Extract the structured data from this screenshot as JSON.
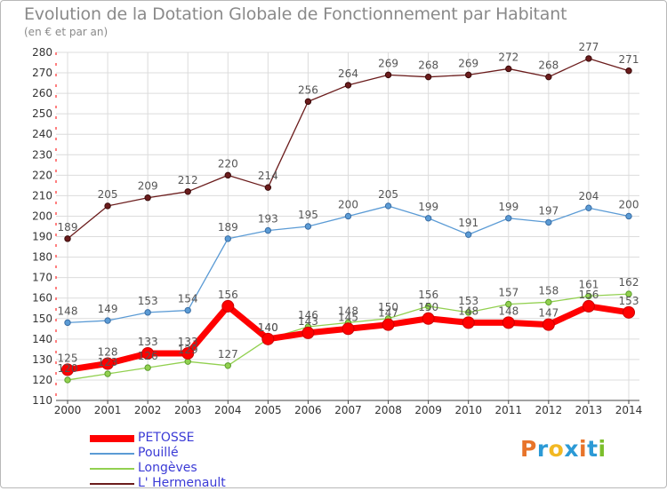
{
  "header": {
    "title": "Evolution de la Dotation Globale de Fonctionnement par Habitant",
    "subtitle": "(en € et par an)"
  },
  "logo": {
    "text": "Proxiti",
    "colors": [
      "#e8742a",
      "#2c9ad6",
      "#f2b822",
      "#2c9ad6",
      "#e8742a",
      "#2c9ad6",
      "#7cbf2c"
    ]
  },
  "chart_data": {
    "type": "line",
    "title": "Evolution de la Dotation Globale de Fonctionnement par Habitant",
    "subtitle": "(en € et par an)",
    "xlabel": "",
    "ylabel": "",
    "x": [
      "2000",
      "2001",
      "2002",
      "2003",
      "2004",
      "2005",
      "2006",
      "2007",
      "2008",
      "2009",
      "2010",
      "2011",
      "2012",
      "2013",
      "2014"
    ],
    "ylim": [
      110,
      280
    ],
    "yticks": [
      110,
      120,
      130,
      140,
      150,
      160,
      170,
      180,
      190,
      200,
      210,
      220,
      230,
      240,
      250,
      260,
      270,
      280
    ],
    "grid": true,
    "legend_position": "bottom-left",
    "series": [
      {
        "name": "PETOSSE",
        "color": "#ff0000",
        "values": [
          125,
          128,
          133,
          133,
          156,
          140,
          143,
          145,
          147,
          150,
          148,
          148,
          147,
          156,
          153
        ]
      },
      {
        "name": "Pouillé",
        "color": "#5b9bd5",
        "values": [
          148,
          149,
          153,
          154,
          189,
          193,
          195,
          200,
          205,
          199,
          191,
          199,
          197,
          204,
          200
        ]
      },
      {
        "name": "Longèves",
        "color": "#92d050",
        "values": [
          120,
          123,
          126,
          129,
          127,
          140,
          146,
          148,
          150,
          156,
          153,
          157,
          158,
          161,
          162
        ]
      },
      {
        "name": "L' Hermenault",
        "color": "#6b1c1c",
        "values": [
          189,
          205,
          209,
          212,
          220,
          214,
          256,
          264,
          269,
          268,
          269,
          272,
          268,
          277,
          271
        ]
      }
    ]
  }
}
